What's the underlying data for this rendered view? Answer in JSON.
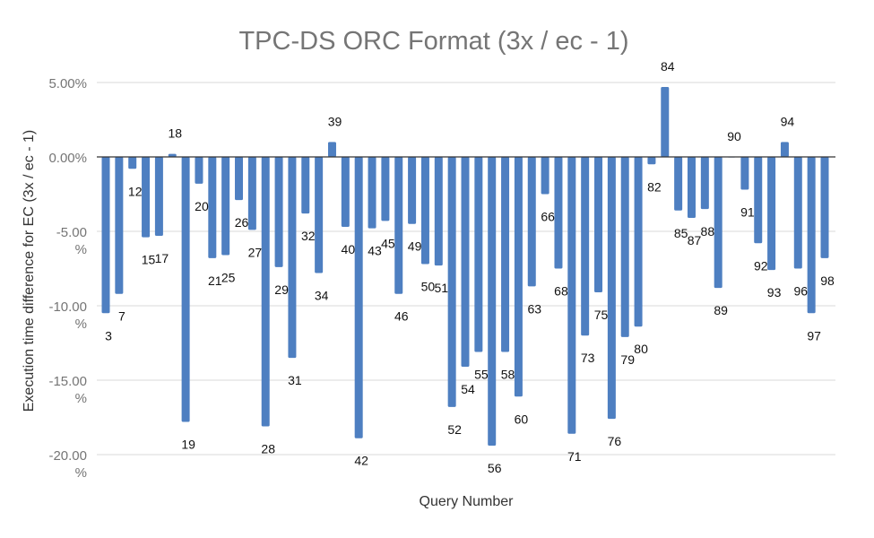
{
  "chart_data": {
    "type": "bar",
    "title": "TPC-DS ORC Format (3x / ec - 1)",
    "xlabel": "Query Number",
    "ylabel": "Execution time difference for EC (3x / ec - 1)",
    "ylim": [
      -20,
      5
    ],
    "yticks": [
      5,
      0,
      -5,
      -10,
      -15,
      -20
    ],
    "ytick_labels": [
      [
        "5.00%"
      ],
      [
        "0.00%"
      ],
      [
        "-5.00",
        "%"
      ],
      [
        "-10.00",
        "%"
      ],
      [
        "-15.00",
        "%"
      ],
      [
        "-20.00",
        "%"
      ]
    ],
    "grid": true,
    "bar_color": "#4e7fc1",
    "categories": [
      "3",
      "7",
      "12",
      "15",
      "17",
      "18",
      "19",
      "20",
      "21",
      "25",
      "26",
      "27",
      "28",
      "29",
      "31",
      "32",
      "34",
      "39",
      "40",
      "42",
      "43",
      "45",
      "46",
      "49",
      "50",
      "51",
      "52",
      "54",
      "55",
      "56",
      "58",
      "60",
      "63",
      "66",
      "68",
      "71",
      "73",
      "75",
      "76",
      "79",
      "80",
      "82",
      "84",
      "85",
      "87",
      "88",
      "89",
      "90",
      "91",
      "92",
      "93",
      "94",
      "96",
      "97",
      "98"
    ],
    "values": [
      -10.5,
      -9.2,
      -0.8,
      -5.4,
      -5.3,
      0.2,
      -17.8,
      -1.8,
      -6.8,
      -6.6,
      -2.9,
      -4.9,
      -18.1,
      -7.4,
      -13.5,
      -3.8,
      -7.8,
      1.0,
      -4.7,
      -18.9,
      -4.8,
      -4.3,
      -9.2,
      -4.5,
      -7.2,
      -7.3,
      -16.8,
      -14.1,
      -13.1,
      -19.4,
      -13.1,
      -16.1,
      -8.7,
      -2.5,
      -7.5,
      -18.6,
      -12.0,
      -9.1,
      -17.6,
      -12.1,
      -11.4,
      -0.5,
      4.7,
      -3.6,
      -4.1,
      -3.5,
      -8.8,
      0.0,
      -2.2,
      -5.8,
      -7.6,
      1.0,
      -7.5,
      -10.5,
      -6.8
    ],
    "labels": [
      "3",
      "7",
      "12",
      "15",
      "17",
      "18",
      "19",
      "20",
      "21",
      "25",
      "26",
      "27",
      "28",
      "29",
      "31",
      "32",
      "34",
      "39",
      "40",
      "42",
      "43",
      "45",
      "46",
      "49",
      "50",
      "51",
      "52",
      "54",
      "55",
      "56",
      "58",
      "60",
      "63",
      "66",
      "68",
      "71",
      "73",
      "75",
      "76",
      "79",
      "80",
      "82",
      "84",
      "85",
      "87",
      "88",
      "89",
      "90",
      "91",
      "92",
      "93",
      "94",
      "96",
      "97",
      "98"
    ]
  }
}
